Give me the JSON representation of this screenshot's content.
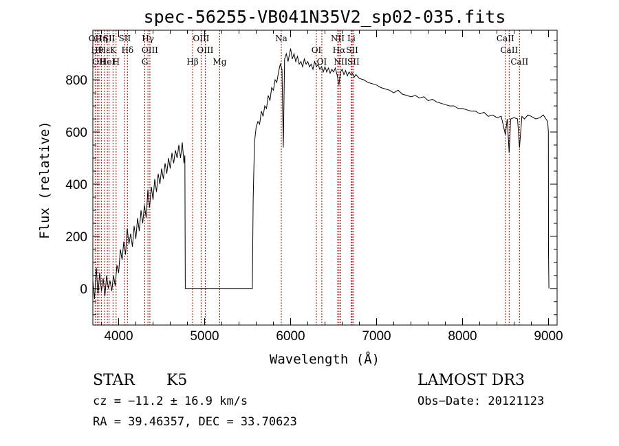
{
  "chart_data": {
    "type": "line",
    "title": "spec-56255-VB041N35V2_sp02-035.fits",
    "xlabel": "Wavelength (Å)",
    "ylabel": "Flux (relative)",
    "xlim": [
      3700,
      9100
    ],
    "ylim": [
      -140,
      990
    ],
    "x_ticks": [
      4000,
      5000,
      6000,
      7000,
      8000,
      9000
    ],
    "y_ticks": [
      0,
      200,
      400,
      600,
      800
    ],
    "grid": false,
    "series": [
      {
        "points": [
          [
            3700,
            30
          ],
          [
            3720,
            -40
          ],
          [
            3740,
            80
          ],
          [
            3760,
            -20
          ],
          [
            3780,
            60
          ],
          [
            3800,
            -10
          ],
          [
            3820,
            40
          ],
          [
            3840,
            -30
          ],
          [
            3860,
            50
          ],
          [
            3880,
            0
          ],
          [
            3900,
            30
          ],
          [
            3920,
            -10
          ],
          [
            3940,
            50
          ],
          [
            3960,
            10
          ],
          [
            3980,
            90
          ],
          [
            4000,
            60
          ],
          [
            4020,
            150
          ],
          [
            4040,
            110
          ],
          [
            4060,
            180
          ],
          [
            4080,
            130
          ],
          [
            4100,
            230
          ],
          [
            4120,
            170
          ],
          [
            4140,
            210
          ],
          [
            4160,
            160
          ],
          [
            4180,
            240
          ],
          [
            4200,
            190
          ],
          [
            4220,
            270
          ],
          [
            4240,
            220
          ],
          [
            4260,
            300
          ],
          [
            4280,
            250
          ],
          [
            4300,
            320
          ],
          [
            4320,
            270
          ],
          [
            4340,
            380
          ],
          [
            4360,
            310
          ],
          [
            4380,
            390
          ],
          [
            4400,
            340
          ],
          [
            4420,
            420
          ],
          [
            4440,
            370
          ],
          [
            4460,
            440
          ],
          [
            4480,
            400
          ],
          [
            4500,
            460
          ],
          [
            4520,
            420
          ],
          [
            4540,
            480
          ],
          [
            4560,
            440
          ],
          [
            4580,
            500
          ],
          [
            4600,
            460
          ],
          [
            4620,
            520
          ],
          [
            4640,
            480
          ],
          [
            4660,
            530
          ],
          [
            4680,
            500
          ],
          [
            4700,
            550
          ],
          [
            4720,
            500
          ],
          [
            4740,
            560
          ],
          [
            4760,
            480
          ],
          [
            4770,
            510
          ],
          [
            4775,
            0
          ],
          [
            5000,
            0
          ],
          [
            5300,
            0
          ],
          [
            5555,
            0
          ],
          [
            5565,
            340
          ],
          [
            5580,
            560
          ],
          [
            5600,
            620
          ],
          [
            5620,
            640
          ],
          [
            5640,
            630
          ],
          [
            5660,
            680
          ],
          [
            5680,
            660
          ],
          [
            5700,
            700
          ],
          [
            5720,
            690
          ],
          [
            5740,
            740
          ],
          [
            5760,
            720
          ],
          [
            5780,
            770
          ],
          [
            5800,
            760
          ],
          [
            5820,
            800
          ],
          [
            5840,
            790
          ],
          [
            5860,
            830
          ],
          [
            5880,
            860
          ],
          [
            5900,
            840
          ],
          [
            5915,
            540
          ],
          [
            5930,
            880
          ],
          [
            5950,
            900
          ],
          [
            5970,
            870
          ],
          [
            6000,
            920
          ],
          [
            6020,
            880
          ],
          [
            6040,
            900
          ],
          [
            6060,
            870
          ],
          [
            6080,
            890
          ],
          [
            6100,
            860
          ],
          [
            6120,
            870
          ],
          [
            6140,
            850
          ],
          [
            6160,
            880
          ],
          [
            6180,
            860
          ],
          [
            6200,
            870
          ],
          [
            6220,
            850
          ],
          [
            6240,
            860
          ],
          [
            6260,
            840
          ],
          [
            6280,
            870
          ],
          [
            6300,
            850
          ],
          [
            6320,
            860
          ],
          [
            6340,
            840
          ],
          [
            6360,
            850
          ],
          [
            6380,
            830
          ],
          [
            6400,
            850
          ],
          [
            6420,
            830
          ],
          [
            6440,
            845
          ],
          [
            6460,
            825
          ],
          [
            6480,
            840
          ],
          [
            6500,
            830
          ],
          [
            6520,
            845
          ],
          [
            6540,
            820
          ],
          [
            6563,
            780
          ],
          [
            6580,
            830
          ],
          [
            6600,
            840
          ],
          [
            6620,
            820
          ],
          [
            6640,
            835
          ],
          [
            6660,
            815
          ],
          [
            6680,
            830
          ],
          [
            6700,
            820
          ],
          [
            6720,
            825
          ],
          [
            6740,
            810
          ],
          [
            6760,
            820
          ],
          [
            6800,
            805
          ],
          [
            6850,
            800
          ],
          [
            6900,
            790
          ],
          [
            6950,
            785
          ],
          [
            7000,
            780
          ],
          [
            7050,
            770
          ],
          [
            7100,
            765
          ],
          [
            7150,
            760
          ],
          [
            7200,
            750
          ],
          [
            7250,
            760
          ],
          [
            7300,
            745
          ],
          [
            7350,
            740
          ],
          [
            7400,
            735
          ],
          [
            7450,
            740
          ],
          [
            7500,
            730
          ],
          [
            7550,
            735
          ],
          [
            7600,
            720
          ],
          [
            7650,
            725
          ],
          [
            7700,
            715
          ],
          [
            7750,
            710
          ],
          [
            7800,
            705
          ],
          [
            7850,
            700
          ],
          [
            7900,
            700
          ],
          [
            7950,
            690
          ],
          [
            8000,
            690
          ],
          [
            8050,
            685
          ],
          [
            8100,
            680
          ],
          [
            8150,
            680
          ],
          [
            8200,
            670
          ],
          [
            8250,
            675
          ],
          [
            8300,
            660
          ],
          [
            8350,
            665
          ],
          [
            8400,
            655
          ],
          [
            8450,
            660
          ],
          [
            8498,
            590
          ],
          [
            8520,
            650
          ],
          [
            8542,
            520
          ],
          [
            8560,
            650
          ],
          [
            8600,
            655
          ],
          [
            8640,
            650
          ],
          [
            8662,
            540
          ],
          [
            8690,
            660
          ],
          [
            8720,
            650
          ],
          [
            8760,
            665
          ],
          [
            8800,
            660
          ],
          [
            8850,
            650
          ],
          [
            8900,
            655
          ],
          [
            8940,
            665
          ],
          [
            8970,
            650
          ],
          [
            8990,
            640
          ],
          [
            8998,
            600
          ],
          [
            9000,
            140
          ],
          [
            9005,
            0
          ]
        ]
      }
    ],
    "lines": [
      {
        "wave": 3727,
        "label": "OII"
      },
      {
        "wave": 3750,
        "label": "Hθ"
      },
      {
        "wave": 3771,
        "label": "OII"
      },
      {
        "wave": 3798,
        "label": "Hη"
      },
      {
        "wave": 3835,
        "label": "Hε"
      },
      {
        "wave": 3869,
        "label": "HeI"
      },
      {
        "wave": 3889,
        "label": "SII"
      },
      {
        "wave": 3934,
        "label": "K"
      },
      {
        "wave": 3970,
        "label": "H"
      },
      {
        "wave": 4071,
        "label": "SII"
      },
      {
        "wave": 4102,
        "label": "Hδ"
      },
      {
        "wave": 4304,
        "label": "G"
      },
      {
        "wave": 4341,
        "label": "Hγ"
      },
      {
        "wave": 4363,
        "label": "OIII"
      },
      {
        "wave": 4861,
        "label": "Hβ"
      },
      {
        "wave": 4959,
        "label": "OIII"
      },
      {
        "wave": 5007,
        "label": "OIII"
      },
      {
        "wave": 5175,
        "label": "Mg"
      },
      {
        "wave": 5892,
        "label": "Na"
      },
      {
        "wave": 6300,
        "label": "OI"
      },
      {
        "wave": 6363,
        "label": "OI"
      },
      {
        "wave": 6548,
        "label": "NII"
      },
      {
        "wave": 6563,
        "label": "Hα"
      },
      {
        "wave": 6583,
        "label": "NII"
      },
      {
        "wave": 6707,
        "label": "Li"
      },
      {
        "wave": 6716,
        "label": "SII"
      },
      {
        "wave": 6731,
        "label": "SII"
      },
      {
        "wave": 8498,
        "label": "CaII"
      },
      {
        "wave": 8542,
        "label": "CaII"
      },
      {
        "wave": 8662,
        "label": "CaII"
      }
    ]
  },
  "info": {
    "object_class": "STAR",
    "subclass": "K5",
    "survey": "LAMOST DR3",
    "cz": "cz = −11.2 ± 16.9 km/s",
    "obs_date": "Obs−Date: 20121123",
    "coords": "RA =  39.46357, DEC =  33.70623"
  },
  "colors": {
    "spectrum": "#000000",
    "line_markers": "#b00000",
    "background": "#ffffff"
  }
}
